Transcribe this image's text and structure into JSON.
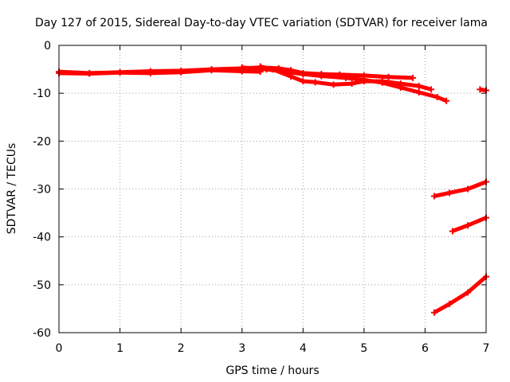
{
  "chart_data": {
    "type": "line",
    "title": "Day 127 of 2015, Sidereal Day-to-day VTEC variation (SDTVAR) for receiver lama",
    "xlabel": "GPS time / hours",
    "ylabel": "SDTVAR / TECUs",
    "xlim": [
      0,
      7
    ],
    "ylim": [
      -60,
      0
    ],
    "xticks": [
      0,
      1,
      2,
      3,
      4,
      5,
      6,
      7
    ],
    "yticks": [
      0,
      -10,
      -20,
      -30,
      -40,
      -50,
      -60
    ],
    "grid": true,
    "color": "#ff0000",
    "series": [
      {
        "x": [
          0,
          0.5,
          1.0,
          1.5,
          2.0,
          2.5,
          3.0,
          3.3,
          3.6,
          3.8,
          4.0,
          4.3,
          4.6,
          5.0,
          5.4,
          5.8
        ],
        "y": [
          -5.5,
          -5.8,
          -5.6,
          -5.4,
          -5.3,
          -5.0,
          -4.8,
          -4.6,
          -4.8,
          -5.2,
          -5.8,
          -6.0,
          -6.1,
          -6.3,
          -6.6,
          -6.8
        ]
      },
      {
        "x": [
          0,
          0.5,
          1.0,
          1.5,
          2.0,
          2.5,
          3.0,
          3.3
        ],
        "y": [
          -5.8,
          -5.9,
          -5.7,
          -5.8,
          -5.6,
          -5.2,
          -5.4,
          -5.5
        ]
      },
      {
        "x": [
          3.3,
          3.5,
          3.8,
          4.0,
          4.2,
          4.5,
          4.8,
          5.0,
          5.3,
          5.6,
          5.9,
          6.1
        ],
        "y": [
          -4.4,
          -5.0,
          -6.5,
          -7.5,
          -7.7,
          -8.2,
          -8.0,
          -7.5,
          -7.5,
          -8.0,
          -8.5,
          -9.2
        ]
      },
      {
        "x": [
          3.0,
          3.4,
          3.7,
          4.0,
          4.3,
          4.7,
          5.0,
          5.3,
          5.6,
          5.9,
          6.2,
          6.35
        ],
        "y": [
          -4.6,
          -5.0,
          -5.5,
          -6.0,
          -6.4,
          -6.8,
          -7.2,
          -7.8,
          -8.8,
          -9.8,
          -10.8,
          -11.6
        ]
      },
      {
        "x": [
          6.9,
          7.0
        ],
        "y": [
          -9.2,
          -9.4
        ]
      },
      {
        "x": [
          6.15,
          6.4,
          6.7,
          7.0
        ],
        "y": [
          -31.5,
          -30.8,
          -30.0,
          -28.5
        ]
      },
      {
        "x": [
          6.45,
          6.7,
          7.0
        ],
        "y": [
          -38.8,
          -37.6,
          -36.0
        ]
      },
      {
        "x": [
          6.15,
          6.4,
          6.7,
          7.0
        ],
        "y": [
          -55.8,
          -54.0,
          -51.6,
          -48.3
        ]
      }
    ]
  }
}
